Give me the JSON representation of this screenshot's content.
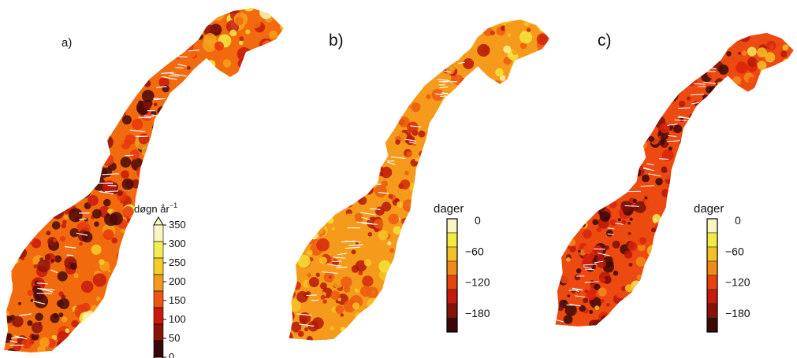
{
  "panels": [
    {
      "label": "a)",
      "palette": [
        "#4a0b08",
        "#8c1208",
        "#c81a0c",
        "#e8360d",
        "#f26a0e",
        "#f7a01a",
        "#f8cf2a",
        "#f2ee4a",
        "#f8f7b0"
      ]
    },
    {
      "label": "b)",
      "palette": [
        "#b5180b",
        "#d4280e",
        "#ec5a10",
        "#f59a1a",
        "#f7c325",
        "#f3e33a",
        "#f6f49a"
      ]
    },
    {
      "label": "c)",
      "palette": [
        "#3d0907",
        "#7a1108",
        "#b8180b",
        "#d9220d",
        "#ec4a10",
        "#f38a17",
        "#f6c024",
        "#f4ea5a"
      ]
    }
  ],
  "legend_a": {
    "unit_main": "døgn år",
    "unit_sup": "−1",
    "ticks": [
      "350",
      "300",
      "250",
      "200",
      "150",
      "100",
      "50",
      "0"
    ],
    "colors": [
      "#f9f6c6",
      "#f2ee50",
      "#f3cd2a",
      "#f39a1c",
      "#ec5512",
      "#c81a0c",
      "#8c1208",
      "#3a0806"
    ],
    "extend": "both"
  },
  "legend_b": {
    "title": "dager",
    "ticks": [
      "0",
      "−60",
      "−120",
      "−180"
    ],
    "colors": [
      "#f8f5c0",
      "#f3ea45",
      "#f4c028",
      "#f08a18",
      "#e8430f",
      "#c51a0c",
      "#861209",
      "#3a0806"
    ]
  },
  "legend_c": {
    "title": "dager",
    "ticks": [
      "0",
      "−60",
      "−120",
      "−180"
    ],
    "colors": [
      "#f8f5c0",
      "#f3ea45",
      "#f4c028",
      "#f08a18",
      "#e8430f",
      "#c51a0c",
      "#861209",
      "#3a0806"
    ]
  }
}
